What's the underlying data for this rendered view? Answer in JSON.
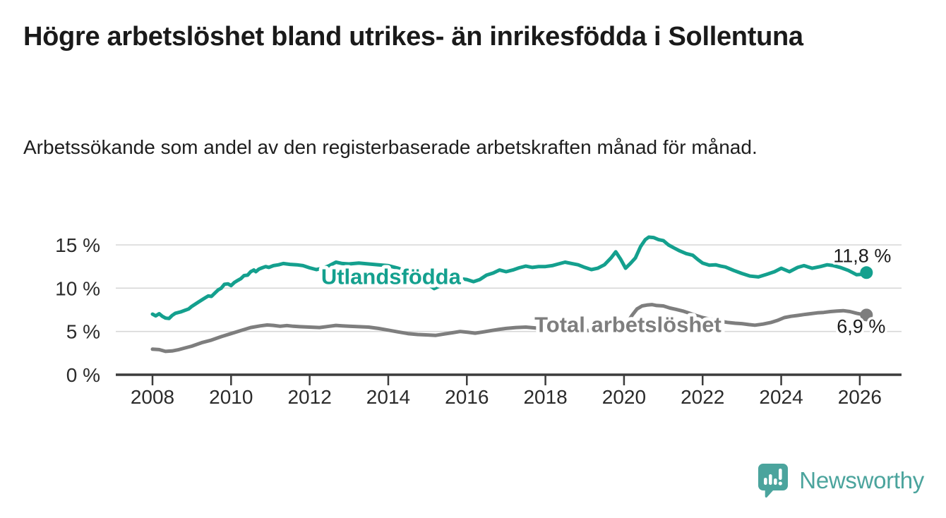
{
  "header": {
    "title": "Högre arbetslöshet bland utrikes- än inrikesfödda i Sollentuna",
    "subtitle": "Arbetssökande som andel av den registerbaserade arbetskraften månad för månad."
  },
  "chart_data": {
    "type": "line",
    "title": "Högre arbetslöshet bland utrikes- än inrikesfödda i Sollentuna",
    "xlabel": "",
    "ylabel": "",
    "x_unit": "decimal_year",
    "y_unit": "percent",
    "xlim": [
      2007.1,
      2027.05
    ],
    "ylim": [
      0,
      16.5
    ],
    "grid": true,
    "legend": "inline-labels",
    "x_ticks": [
      {
        "value": 2008,
        "label": "2008"
      },
      {
        "value": 2010,
        "label": "2010"
      },
      {
        "value": 2012,
        "label": "2012"
      },
      {
        "value": 2014,
        "label": "2014"
      },
      {
        "value": 2016,
        "label": "2016"
      },
      {
        "value": 2018,
        "label": "2018"
      },
      {
        "value": 2020,
        "label": "2020"
      },
      {
        "value": 2022,
        "label": "2022"
      },
      {
        "value": 2024,
        "label": "2024"
      },
      {
        "value": 2026,
        "label": "2026"
      }
    ],
    "y_ticks": [
      {
        "value": 0,
        "label": "0 %"
      },
      {
        "value": 5,
        "label": "5 %"
      },
      {
        "value": 10,
        "label": "10 %"
      },
      {
        "value": 15,
        "label": "15 %"
      }
    ],
    "series": [
      {
        "id": "utlandsfodda",
        "label": "Utlandsfödda",
        "color": "#14A08E",
        "end_label": "11,8 %",
        "end_value": 11.8,
        "label_pos": {
          "x": 2014.07,
          "y": 11.4
        },
        "points": [
          [
            2008.0,
            7.0
          ],
          [
            2008.08,
            6.8
          ],
          [
            2008.17,
            7.05
          ],
          [
            2008.25,
            6.75
          ],
          [
            2008.33,
            6.55
          ],
          [
            2008.42,
            6.5
          ],
          [
            2008.5,
            6.85
          ],
          [
            2008.58,
            7.1
          ],
          [
            2008.71,
            7.25
          ],
          [
            2008.83,
            7.45
          ],
          [
            2008.92,
            7.6
          ],
          [
            2009.0,
            7.9
          ],
          [
            2009.17,
            8.4
          ],
          [
            2009.33,
            8.85
          ],
          [
            2009.42,
            9.1
          ],
          [
            2009.5,
            9.05
          ],
          [
            2009.58,
            9.4
          ],
          [
            2009.67,
            9.8
          ],
          [
            2009.75,
            10.0
          ],
          [
            2009.83,
            10.45
          ],
          [
            2009.92,
            10.5
          ],
          [
            2010.0,
            10.3
          ],
          [
            2010.08,
            10.65
          ],
          [
            2010.17,
            10.9
          ],
          [
            2010.25,
            11.1
          ],
          [
            2010.33,
            11.45
          ],
          [
            2010.42,
            11.5
          ],
          [
            2010.5,
            11.9
          ],
          [
            2010.58,
            12.1
          ],
          [
            2010.63,
            11.9
          ],
          [
            2010.71,
            12.2
          ],
          [
            2010.79,
            12.35
          ],
          [
            2010.88,
            12.5
          ],
          [
            2010.96,
            12.4
          ],
          [
            2011.08,
            12.6
          ],
          [
            2011.21,
            12.7
          ],
          [
            2011.33,
            12.85
          ],
          [
            2011.5,
            12.75
          ],
          [
            2011.67,
            12.7
          ],
          [
            2011.83,
            12.6
          ],
          [
            2012.0,
            12.35
          ],
          [
            2012.17,
            12.15
          ],
          [
            2012.33,
            12.3
          ],
          [
            2012.5,
            12.6
          ],
          [
            2012.67,
            13.0
          ],
          [
            2012.83,
            12.85
          ],
          [
            2013.0,
            12.8
          ],
          [
            2013.25,
            12.9
          ],
          [
            2013.5,
            12.8
          ],
          [
            2013.75,
            12.7
          ],
          [
            2014.0,
            12.6
          ],
          [
            2014.25,
            12.3
          ],
          [
            2014.5,
            11.9
          ],
          [
            2014.75,
            11.3
          ],
          [
            2015.0,
            10.5
          ],
          [
            2015.17,
            9.95
          ],
          [
            2015.33,
            10.3
          ],
          [
            2015.58,
            10.8
          ],
          [
            2015.83,
            11.1
          ],
          [
            2016.0,
            11.0
          ],
          [
            2016.17,
            10.75
          ],
          [
            2016.33,
            11.0
          ],
          [
            2016.5,
            11.5
          ],
          [
            2016.67,
            11.75
          ],
          [
            2016.83,
            12.1
          ],
          [
            2017.0,
            11.9
          ],
          [
            2017.17,
            12.1
          ],
          [
            2017.33,
            12.35
          ],
          [
            2017.5,
            12.55
          ],
          [
            2017.67,
            12.4
          ],
          [
            2017.83,
            12.5
          ],
          [
            2018.0,
            12.5
          ],
          [
            2018.17,
            12.6
          ],
          [
            2018.33,
            12.8
          ],
          [
            2018.5,
            13.0
          ],
          [
            2018.67,
            12.85
          ],
          [
            2018.83,
            12.7
          ],
          [
            2019.0,
            12.4
          ],
          [
            2019.17,
            12.15
          ],
          [
            2019.33,
            12.3
          ],
          [
            2019.5,
            12.7
          ],
          [
            2019.67,
            13.5
          ],
          [
            2019.79,
            14.2
          ],
          [
            2019.92,
            13.3
          ],
          [
            2020.04,
            12.3
          ],
          [
            2020.17,
            12.9
          ],
          [
            2020.29,
            13.5
          ],
          [
            2020.42,
            14.8
          ],
          [
            2020.54,
            15.6
          ],
          [
            2020.63,
            15.9
          ],
          [
            2020.75,
            15.85
          ],
          [
            2020.88,
            15.6
          ],
          [
            2021.0,
            15.5
          ],
          [
            2021.13,
            15.0
          ],
          [
            2021.25,
            14.7
          ],
          [
            2021.42,
            14.3
          ],
          [
            2021.58,
            14.0
          ],
          [
            2021.75,
            13.8
          ],
          [
            2021.88,
            13.3
          ],
          [
            2022.0,
            12.9
          ],
          [
            2022.17,
            12.65
          ],
          [
            2022.33,
            12.7
          ],
          [
            2022.46,
            12.55
          ],
          [
            2022.58,
            12.45
          ],
          [
            2022.79,
            12.05
          ],
          [
            2023.0,
            11.7
          ],
          [
            2023.21,
            11.4
          ],
          [
            2023.42,
            11.3
          ],
          [
            2023.63,
            11.6
          ],
          [
            2023.83,
            11.9
          ],
          [
            2024.0,
            12.3
          ],
          [
            2024.21,
            11.9
          ],
          [
            2024.42,
            12.4
          ],
          [
            2024.58,
            12.6
          ],
          [
            2024.79,
            12.3
          ],
          [
            2025.0,
            12.5
          ],
          [
            2025.17,
            12.7
          ],
          [
            2025.33,
            12.6
          ],
          [
            2025.5,
            12.4
          ],
          [
            2025.71,
            12.05
          ],
          [
            2025.92,
            11.55
          ],
          [
            2026.04,
            11.6
          ],
          [
            2026.17,
            11.8
          ]
        ]
      },
      {
        "id": "total",
        "label": "Total arbetslöshet",
        "color": "#7E7E7E",
        "end_label": "6,9 %",
        "end_value": 6.9,
        "label_pos": {
          "x": 2020.1,
          "y": 5.85
        },
        "points": [
          [
            2008.0,
            2.95
          ],
          [
            2008.17,
            2.9
          ],
          [
            2008.33,
            2.7
          ],
          [
            2008.5,
            2.75
          ],
          [
            2008.67,
            2.9
          ],
          [
            2008.83,
            3.1
          ],
          [
            2009.0,
            3.3
          ],
          [
            2009.25,
            3.7
          ],
          [
            2009.5,
            4.0
          ],
          [
            2009.75,
            4.4
          ],
          [
            2010.0,
            4.75
          ],
          [
            2010.25,
            5.1
          ],
          [
            2010.5,
            5.45
          ],
          [
            2010.75,
            5.65
          ],
          [
            2010.92,
            5.75
          ],
          [
            2011.08,
            5.7
          ],
          [
            2011.25,
            5.6
          ],
          [
            2011.42,
            5.68
          ],
          [
            2011.58,
            5.6
          ],
          [
            2011.75,
            5.55
          ],
          [
            2012.0,
            5.5
          ],
          [
            2012.25,
            5.45
          ],
          [
            2012.5,
            5.6
          ],
          [
            2012.67,
            5.7
          ],
          [
            2012.83,
            5.65
          ],
          [
            2013.0,
            5.6
          ],
          [
            2013.25,
            5.55
          ],
          [
            2013.5,
            5.5
          ],
          [
            2013.75,
            5.35
          ],
          [
            2014.0,
            5.15
          ],
          [
            2014.25,
            4.95
          ],
          [
            2014.5,
            4.75
          ],
          [
            2014.75,
            4.65
          ],
          [
            2015.0,
            4.6
          ],
          [
            2015.21,
            4.55
          ],
          [
            2015.42,
            4.7
          ],
          [
            2015.63,
            4.85
          ],
          [
            2015.83,
            5.0
          ],
          [
            2016.04,
            4.9
          ],
          [
            2016.21,
            4.8
          ],
          [
            2016.42,
            4.95
          ],
          [
            2016.63,
            5.1
          ],
          [
            2016.83,
            5.25
          ],
          [
            2017.0,
            5.35
          ],
          [
            2017.25,
            5.45
          ],
          [
            2017.5,
            5.5
          ],
          [
            2017.75,
            5.4
          ],
          [
            2018.0,
            5.3
          ],
          [
            2018.33,
            5.2
          ],
          [
            2018.67,
            5.15
          ],
          [
            2019.0,
            5.1
          ],
          [
            2019.33,
            5.15
          ],
          [
            2019.67,
            5.25
          ],
          [
            2019.92,
            5.5
          ],
          [
            2020.08,
            6.0
          ],
          [
            2020.21,
            6.9
          ],
          [
            2020.33,
            7.6
          ],
          [
            2020.46,
            7.95
          ],
          [
            2020.58,
            8.05
          ],
          [
            2020.71,
            8.1
          ],
          [
            2020.83,
            8.0
          ],
          [
            2021.0,
            7.95
          ],
          [
            2021.17,
            7.7
          ],
          [
            2021.33,
            7.55
          ],
          [
            2021.5,
            7.35
          ],
          [
            2021.67,
            7.1
          ],
          [
            2021.83,
            6.85
          ],
          [
            2022.0,
            6.6
          ],
          [
            2022.21,
            6.4
          ],
          [
            2022.42,
            6.2
          ],
          [
            2022.63,
            6.05
          ],
          [
            2022.83,
            5.95
          ],
          [
            2023.0,
            5.9
          ],
          [
            2023.17,
            5.8
          ],
          [
            2023.33,
            5.72
          ],
          [
            2023.54,
            5.85
          ],
          [
            2023.75,
            6.05
          ],
          [
            2023.92,
            6.3
          ],
          [
            2024.08,
            6.6
          ],
          [
            2024.25,
            6.75
          ],
          [
            2024.42,
            6.85
          ],
          [
            2024.58,
            6.95
          ],
          [
            2024.75,
            7.05
          ],
          [
            2024.92,
            7.15
          ],
          [
            2025.08,
            7.2
          ],
          [
            2025.25,
            7.3
          ],
          [
            2025.42,
            7.35
          ],
          [
            2025.58,
            7.4
          ],
          [
            2025.75,
            7.3
          ],
          [
            2025.92,
            7.1
          ],
          [
            2026.08,
            6.95
          ],
          [
            2026.17,
            6.9
          ]
        ]
      }
    ]
  },
  "colors": {
    "accent_teal": "#14A08E",
    "series_gray": "#7E7E7E",
    "gridline": "#D7D7D7",
    "axis": "#3C3C3C",
    "logo_teal": "#4BA49D"
  },
  "logo": {
    "text": "Newsworthy"
  }
}
